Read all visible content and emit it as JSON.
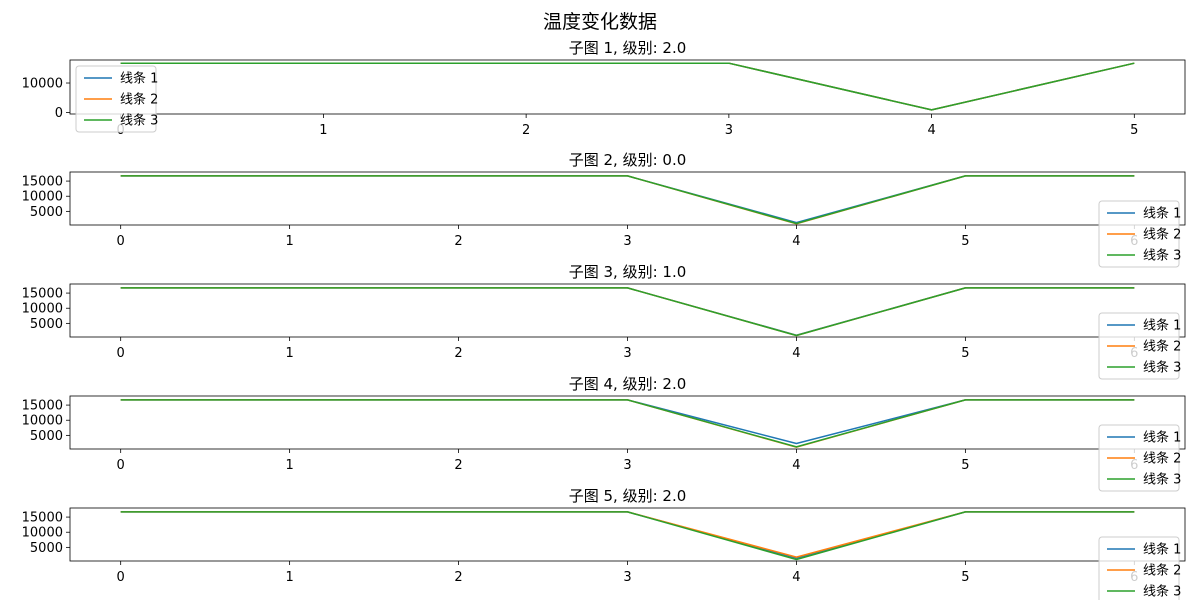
{
  "figure": {
    "suptitle": "温度变化数据"
  },
  "chart_data": [
    {
      "type": "line",
      "title": "子图 1, 级别: 2.0",
      "x": [
        0,
        1,
        2,
        3,
        4,
        5
      ],
      "xlim": [
        -0.25,
        5.25
      ],
      "ylim": [
        -500,
        17800
      ],
      "yticks": [
        0,
        10000
      ],
      "legend_position": "upper-left",
      "series": [
        {
          "name": "线条 1",
          "values": [
            16700,
            16700,
            16700,
            16700,
            900,
            16700
          ]
        },
        {
          "name": "线条 2",
          "values": [
            16700,
            16700,
            16700,
            16700,
            900,
            16700
          ]
        },
        {
          "name": "线条 3",
          "values": [
            16700,
            16700,
            16700,
            16700,
            900,
            16700
          ]
        }
      ]
    },
    {
      "type": "line",
      "title": "子图 2, 级别: 0.0",
      "x": [
        0,
        1,
        2,
        3,
        4,
        5,
        6
      ],
      "xlim": [
        -0.3,
        6.3
      ],
      "ylim": [
        500,
        18000
      ],
      "yticks": [
        5000,
        10000,
        15000
      ],
      "legend_position": "lower-right",
      "series": [
        {
          "name": "线条 1",
          "values": [
            16700,
            16700,
            16700,
            16700,
            1300,
            16700,
            16700
          ]
        },
        {
          "name": "线条 2",
          "values": [
            16700,
            16700,
            16700,
            16700,
            900,
            16700,
            16700
          ]
        },
        {
          "name": "线条 3",
          "values": [
            16700,
            16700,
            16700,
            16700,
            1000,
            16700,
            16700
          ]
        }
      ]
    },
    {
      "type": "line",
      "title": "子图 3, 级别: 1.0",
      "x": [
        0,
        1,
        2,
        3,
        4,
        5,
        6
      ],
      "xlim": [
        -0.3,
        6.3
      ],
      "ylim": [
        500,
        18000
      ],
      "yticks": [
        5000,
        10000,
        15000
      ],
      "legend_position": "lower-right",
      "series": [
        {
          "name": "线条 1",
          "values": [
            16700,
            16700,
            16700,
            16700,
            1100,
            16700,
            16700
          ]
        },
        {
          "name": "线条 2",
          "values": [
            16700,
            16700,
            16700,
            16700,
            1000,
            16700,
            16700
          ]
        },
        {
          "name": "线条 3",
          "values": [
            16700,
            16700,
            16700,
            16700,
            1000,
            16700,
            16700
          ]
        }
      ]
    },
    {
      "type": "line",
      "title": "子图 4, 级别: 2.0",
      "x": [
        0,
        1,
        2,
        3,
        4,
        5,
        6
      ],
      "xlim": [
        -0.3,
        6.3
      ],
      "ylim": [
        500,
        18000
      ],
      "yticks": [
        5000,
        10000,
        15000
      ],
      "legend_position": "lower-right",
      "series": [
        {
          "name": "线条 1",
          "values": [
            16700,
            16700,
            16700,
            16700,
            2300,
            16700,
            16700
          ]
        },
        {
          "name": "线条 2",
          "values": [
            16700,
            16700,
            16700,
            16700,
            1100,
            16700,
            16700
          ]
        },
        {
          "name": "线条 3",
          "values": [
            16700,
            16700,
            16700,
            16700,
            1200,
            16700,
            16700
          ]
        }
      ]
    },
    {
      "type": "line",
      "title": "子图 5, 级别: 2.0",
      "x": [
        0,
        1,
        2,
        3,
        4,
        5,
        6
      ],
      "xlim": [
        -0.3,
        6.3
      ],
      "ylim": [
        500,
        18000
      ],
      "yticks": [
        5000,
        10000,
        15000
      ],
      "legend_position": "lower-right",
      "series": [
        {
          "name": "线条 1",
          "values": [
            16700,
            16700,
            16700,
            16700,
            1500,
            16700,
            16700
          ]
        },
        {
          "name": "线条 2",
          "values": [
            16700,
            16700,
            16700,
            16700,
            1800,
            16700,
            16700
          ]
        },
        {
          "name": "线条 3",
          "values": [
            16700,
            16700,
            16700,
            16700,
            1000,
            16700,
            16700
          ]
        }
      ]
    }
  ],
  "colors": {
    "series": [
      "#1f77b4",
      "#ff7f0e",
      "#2ca02c"
    ]
  }
}
